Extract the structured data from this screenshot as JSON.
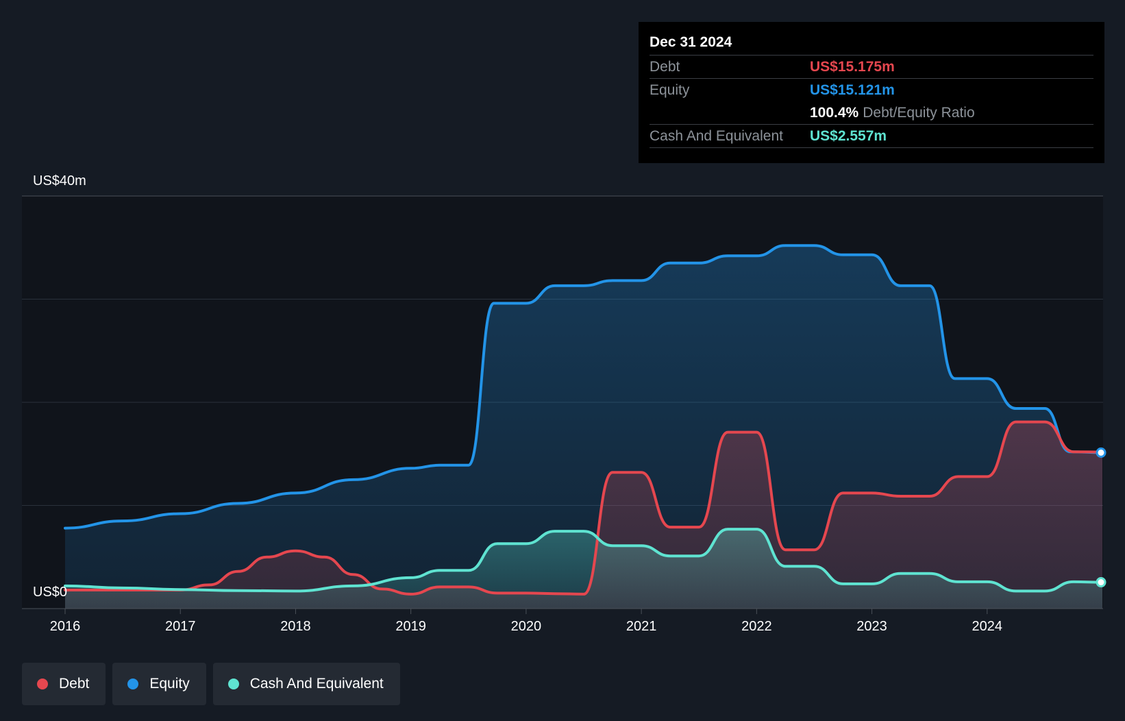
{
  "tooltip": {
    "date": "Dec 31 2024",
    "debt_label": "Debt",
    "debt_value": "US$15.175m",
    "equity_label": "Equity",
    "equity_value": "US$15.121m",
    "ratio_value": "100.4%",
    "ratio_label": "Debt/Equity Ratio",
    "cash_label": "Cash And Equivalent",
    "cash_value": "US$2.557m"
  },
  "legend": [
    {
      "label": "Debt",
      "color": "#e5474f"
    },
    {
      "label": "Equity",
      "color": "#2394e8"
    },
    {
      "label": "Cash And Equivalent",
      "color": "#5fe3d1"
    }
  ],
  "colors": {
    "debt": "#e5474f",
    "equity": "#2394e8",
    "cash": "#5fe3d1",
    "background": "#151b24",
    "plot_background": "#10141b"
  },
  "chart_data": {
    "type": "area",
    "ylabel_top": "US$40m",
    "ylabel_bottom": "US$0",
    "ylim": [
      0,
      40
    ],
    "xlim": [
      2016,
      2025
    ],
    "x_ticks": [
      "2016",
      "2017",
      "2018",
      "2019",
      "2020",
      "2021",
      "2022",
      "2023",
      "2024"
    ],
    "grid": true,
    "legend_position": "bottom-left",
    "series": [
      {
        "name": "Equity",
        "color": "#2394e8",
        "points": [
          [
            2016.0,
            7.8
          ],
          [
            2016.5,
            8.5
          ],
          [
            2017.0,
            9.2
          ],
          [
            2017.5,
            10.2
          ],
          [
            2018.0,
            11.2
          ],
          [
            2018.5,
            12.5
          ],
          [
            2019.0,
            13.6
          ],
          [
            2019.25,
            13.9
          ],
          [
            2019.5,
            13.9
          ],
          [
            2019.72,
            29.6
          ],
          [
            2020.0,
            29.6
          ],
          [
            2020.25,
            31.3
          ],
          [
            2020.5,
            31.3
          ],
          [
            2020.75,
            31.8
          ],
          [
            2021.0,
            31.8
          ],
          [
            2021.25,
            33.5
          ],
          [
            2021.5,
            33.5
          ],
          [
            2021.75,
            34.2
          ],
          [
            2022.0,
            34.2
          ],
          [
            2022.25,
            35.2
          ],
          [
            2022.5,
            35.2
          ],
          [
            2022.75,
            34.3
          ],
          [
            2023.0,
            34.3
          ],
          [
            2023.25,
            31.3
          ],
          [
            2023.5,
            31.3
          ],
          [
            2023.72,
            22.3
          ],
          [
            2024.0,
            22.3
          ],
          [
            2024.25,
            19.4
          ],
          [
            2024.5,
            19.4
          ],
          [
            2024.72,
            15.2
          ],
          [
            2025.0,
            15.121
          ]
        ]
      },
      {
        "name": "Debt",
        "color": "#e5474f",
        "points": [
          [
            2016.0,
            1.8
          ],
          [
            2016.5,
            1.8
          ],
          [
            2017.0,
            1.8
          ],
          [
            2017.25,
            2.3
          ],
          [
            2017.5,
            3.6
          ],
          [
            2017.75,
            5.0
          ],
          [
            2018.0,
            5.6
          ],
          [
            2018.25,
            5.0
          ],
          [
            2018.5,
            3.3
          ],
          [
            2018.75,
            1.9
          ],
          [
            2019.0,
            1.4
          ],
          [
            2019.25,
            2.1
          ],
          [
            2019.5,
            2.1
          ],
          [
            2019.75,
            1.5
          ],
          [
            2020.0,
            1.5
          ],
          [
            2020.25,
            1.45
          ],
          [
            2020.5,
            1.4
          ],
          [
            2020.75,
            13.2
          ],
          [
            2021.0,
            13.2
          ],
          [
            2021.25,
            7.9
          ],
          [
            2021.5,
            7.9
          ],
          [
            2021.75,
            17.1
          ],
          [
            2022.0,
            17.1
          ],
          [
            2022.25,
            5.7
          ],
          [
            2022.5,
            5.7
          ],
          [
            2022.75,
            11.2
          ],
          [
            2023.0,
            11.2
          ],
          [
            2023.25,
            10.9
          ],
          [
            2023.5,
            10.9
          ],
          [
            2023.75,
            12.8
          ],
          [
            2024.0,
            12.8
          ],
          [
            2024.25,
            18.1
          ],
          [
            2024.5,
            18.1
          ],
          [
            2024.75,
            15.2
          ],
          [
            2025.0,
            15.175
          ]
        ]
      },
      {
        "name": "Cash And Equivalent",
        "color": "#5fe3d1",
        "points": [
          [
            2016.0,
            2.2
          ],
          [
            2016.5,
            2.0
          ],
          [
            2017.0,
            1.85
          ],
          [
            2017.5,
            1.75
          ],
          [
            2018.0,
            1.7
          ],
          [
            2018.5,
            2.2
          ],
          [
            2019.0,
            3.0
          ],
          [
            2019.25,
            3.7
          ],
          [
            2019.5,
            3.7
          ],
          [
            2019.75,
            6.3
          ],
          [
            2020.0,
            6.3
          ],
          [
            2020.25,
            7.5
          ],
          [
            2020.5,
            7.5
          ],
          [
            2020.75,
            6.1
          ],
          [
            2021.0,
            6.1
          ],
          [
            2021.25,
            5.1
          ],
          [
            2021.5,
            5.1
          ],
          [
            2021.75,
            7.7
          ],
          [
            2022.0,
            7.7
          ],
          [
            2022.25,
            4.1
          ],
          [
            2022.5,
            4.1
          ],
          [
            2022.75,
            2.4
          ],
          [
            2023.0,
            2.4
          ],
          [
            2023.25,
            3.4
          ],
          [
            2023.5,
            3.4
          ],
          [
            2023.75,
            2.6
          ],
          [
            2024.0,
            2.6
          ],
          [
            2024.25,
            1.7
          ],
          [
            2024.5,
            1.7
          ],
          [
            2024.75,
            2.6
          ],
          [
            2025.0,
            2.557
          ]
        ]
      }
    ]
  }
}
